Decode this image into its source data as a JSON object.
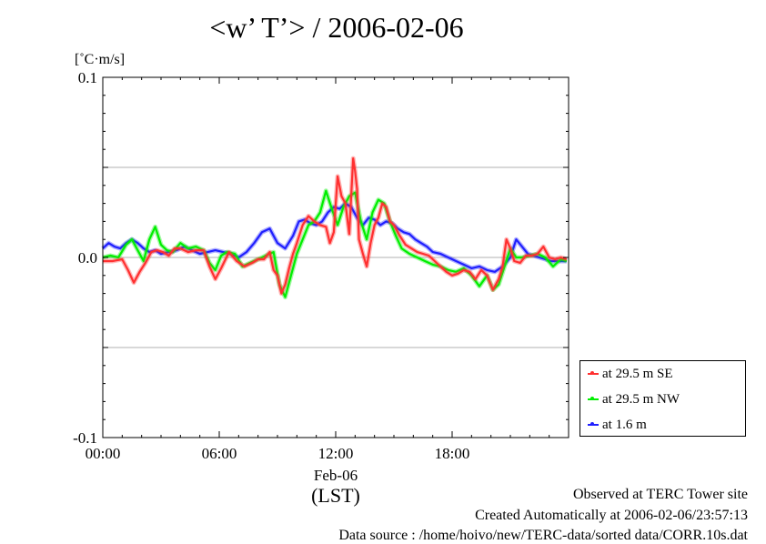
{
  "title": "<w’ T’> / 2006-02-06",
  "footer": {
    "line1": "Observed at TERC Tower site",
    "line2": "Created Automatically at 2006-02-06/23:57:13",
    "line3": "Data source : /home/hoivo/new/TERC-data/sorted  data/CORR.10s.dat"
  },
  "chart_data": {
    "type": "line",
    "title": "<w’ T’> / 2006-02-06",
    "ylabel": "[˚C·m/s]",
    "ylim": [
      -0.1,
      0.1
    ],
    "yticks": [
      -0.1,
      -0.05,
      0.0,
      0.05,
      0.1
    ],
    "ytick_labels": [
      "-0.1",
      "",
      "0.0",
      "",
      "0.1"
    ],
    "xlim": [
      0,
      24
    ],
    "xticks": [
      0,
      6,
      12,
      18
    ],
    "xtick_labels": [
      "00:00",
      "06:00",
      "12:00",
      "18:00"
    ],
    "xlabel_date": "Feb-06",
    "xlabel_unit": "(LST)",
    "grid": true,
    "legend_position": "right",
    "series": [
      {
        "name": "at 29.5 m SE",
        "color": "#ff3030",
        "x": [
          0.0,
          0.5,
          1.0,
          1.3,
          1.6,
          1.9,
          2.2,
          2.5,
          2.8,
          3.1,
          3.4,
          3.7,
          4.0,
          4.4,
          4.8,
          5.2,
          5.5,
          5.8,
          6.1,
          6.5,
          6.9,
          7.3,
          7.7,
          8.0,
          8.3,
          8.6,
          8.8,
          9.0,
          9.2,
          9.4,
          9.6,
          9.8,
          10.0,
          10.3,
          10.6,
          10.9,
          11.2,
          11.5,
          11.7,
          11.9,
          12.1,
          12.3,
          12.5,
          12.7,
          12.9,
          13.0,
          13.1,
          13.2,
          13.4,
          13.6,
          13.8,
          14.0,
          14.2,
          14.4,
          14.6,
          14.8,
          15.0,
          15.3,
          15.6,
          15.9,
          16.2,
          16.5,
          16.8,
          17.1,
          17.4,
          17.7,
          18.0,
          18.3,
          18.6,
          18.9,
          19.2,
          19.5,
          19.8,
          20.1,
          20.4,
          20.6,
          20.8,
          21.0,
          21.2,
          21.5,
          21.8,
          22.1,
          22.4,
          22.7,
          23.0,
          23.3,
          23.6,
          23.9
        ],
        "values": [
          -0.002,
          -0.002,
          -0.001,
          -0.007,
          -0.014,
          -0.008,
          -0.003,
          0.003,
          0.004,
          0.003,
          0.001,
          0.005,
          0.005,
          0.003,
          0.004,
          0.004,
          -0.005,
          -0.012,
          -0.006,
          0.003,
          -0.002,
          -0.005,
          -0.003,
          -0.001,
          -0.001,
          0.003,
          -0.007,
          -0.01,
          -0.02,
          -0.015,
          -0.006,
          0.002,
          0.008,
          0.018,
          0.023,
          0.02,
          0.018,
          0.017,
          0.008,
          0.014,
          0.045,
          0.034,
          0.03,
          0.013,
          0.055,
          0.048,
          0.038,
          0.01,
          0.002,
          -0.005,
          0.008,
          0.018,
          0.022,
          0.03,
          0.028,
          0.02,
          0.018,
          0.012,
          0.007,
          0.005,
          0.003,
          0.002,
          0.001,
          -0.002,
          -0.005,
          -0.008,
          -0.01,
          -0.009,
          -0.007,
          -0.008,
          -0.012,
          -0.007,
          -0.01,
          -0.018,
          -0.012,
          -0.005,
          0.01,
          0.005,
          -0.002,
          -0.003,
          0.001,
          0.001,
          0.002,
          0.006,
          0.0,
          -0.001,
          0.0,
          -0.001
        ]
      },
      {
        "name": "at 29.5 m NW",
        "color": "#00ee00",
        "x": [
          0.0,
          0.4,
          0.8,
          1.2,
          1.5,
          1.8,
          2.1,
          2.4,
          2.7,
          3.0,
          3.3,
          3.6,
          4.0,
          4.4,
          4.8,
          5.2,
          5.5,
          5.8,
          6.1,
          6.4,
          6.8,
          7.2,
          7.6,
          8.0,
          8.4,
          8.8,
          9.1,
          9.4,
          9.7,
          10.0,
          10.3,
          10.6,
          10.9,
          11.2,
          11.5,
          11.8,
          12.1,
          12.4,
          12.7,
          13.0,
          13.3,
          13.6,
          13.9,
          14.2,
          14.5,
          14.8,
          15.1,
          15.4,
          15.8,
          16.2,
          16.6,
          17.0,
          17.4,
          17.8,
          18.2,
          18.6,
          19.0,
          19.4,
          19.8,
          20.1,
          20.4,
          20.7,
          21.0,
          21.3,
          21.6,
          22.0,
          22.4,
          22.8,
          23.2,
          23.6,
          23.9
        ],
        "values": [
          0.0,
          0.001,
          0.0,
          0.007,
          0.01,
          0.004,
          -0.002,
          0.01,
          0.017,
          0.007,
          0.004,
          0.003,
          0.008,
          0.005,
          0.006,
          0.004,
          -0.003,
          -0.007,
          0.001,
          0.003,
          0.002,
          -0.005,
          -0.003,
          -0.001,
          0.001,
          0.003,
          -0.015,
          -0.022,
          -0.01,
          0.002,
          0.01,
          0.018,
          0.02,
          0.025,
          0.037,
          0.027,
          0.018,
          0.028,
          0.034,
          0.036,
          0.02,
          0.01,
          0.025,
          0.032,
          0.03,
          0.02,
          0.012,
          0.005,
          0.002,
          0.0,
          -0.002,
          -0.004,
          -0.005,
          -0.007,
          -0.008,
          -0.006,
          -0.01,
          -0.016,
          -0.01,
          -0.018,
          -0.015,
          -0.005,
          0.005,
          0.0,
          0.0,
          0.001,
          0.002,
          0.0,
          -0.005,
          -0.001,
          -0.002
        ]
      },
      {
        "name": "at 1.6 m",
        "color": "#2020ff",
        "x": [
          0.0,
          0.3,
          0.6,
          0.9,
          1.2,
          1.5,
          1.8,
          2.1,
          2.4,
          2.7,
          3.0,
          3.4,
          3.8,
          4.2,
          4.6,
          5.0,
          5.4,
          5.8,
          6.2,
          6.6,
          7.0,
          7.4,
          7.8,
          8.2,
          8.6,
          9.0,
          9.4,
          9.8,
          10.1,
          10.4,
          10.7,
          11.0,
          11.3,
          11.6,
          11.9,
          12.2,
          12.5,
          12.8,
          13.1,
          13.4,
          13.7,
          14.0,
          14.3,
          14.6,
          14.9,
          15.2,
          15.5,
          15.8,
          16.1,
          16.4,
          16.7,
          17.0,
          17.4,
          17.8,
          18.2,
          18.6,
          19.0,
          19.4,
          19.8,
          20.2,
          20.6,
          21.0,
          21.3,
          21.6,
          21.9,
          22.2,
          22.5,
          22.8,
          23.1,
          23.4,
          23.7,
          23.9
        ],
        "values": [
          0.005,
          0.008,
          0.006,
          0.005,
          0.008,
          0.01,
          0.008,
          0.005,
          0.003,
          0.004,
          0.002,
          0.003,
          0.004,
          0.006,
          0.004,
          0.002,
          0.003,
          0.004,
          0.003,
          0.002,
          0.0,
          0.003,
          0.008,
          0.014,
          0.016,
          0.008,
          0.005,
          0.012,
          0.02,
          0.021,
          0.019,
          0.018,
          0.02,
          0.025,
          0.028,
          0.027,
          0.03,
          0.028,
          0.022,
          0.018,
          0.022,
          0.021,
          0.018,
          0.02,
          0.019,
          0.016,
          0.014,
          0.013,
          0.01,
          0.008,
          0.006,
          0.003,
          0.002,
          0.0,
          -0.002,
          -0.004,
          -0.006,
          -0.005,
          -0.007,
          -0.008,
          -0.005,
          0.0,
          0.01,
          0.006,
          0.002,
          0.001,
          0.0,
          -0.001,
          -0.002,
          -0.002,
          -0.002,
          -0.002
        ]
      }
    ]
  }
}
